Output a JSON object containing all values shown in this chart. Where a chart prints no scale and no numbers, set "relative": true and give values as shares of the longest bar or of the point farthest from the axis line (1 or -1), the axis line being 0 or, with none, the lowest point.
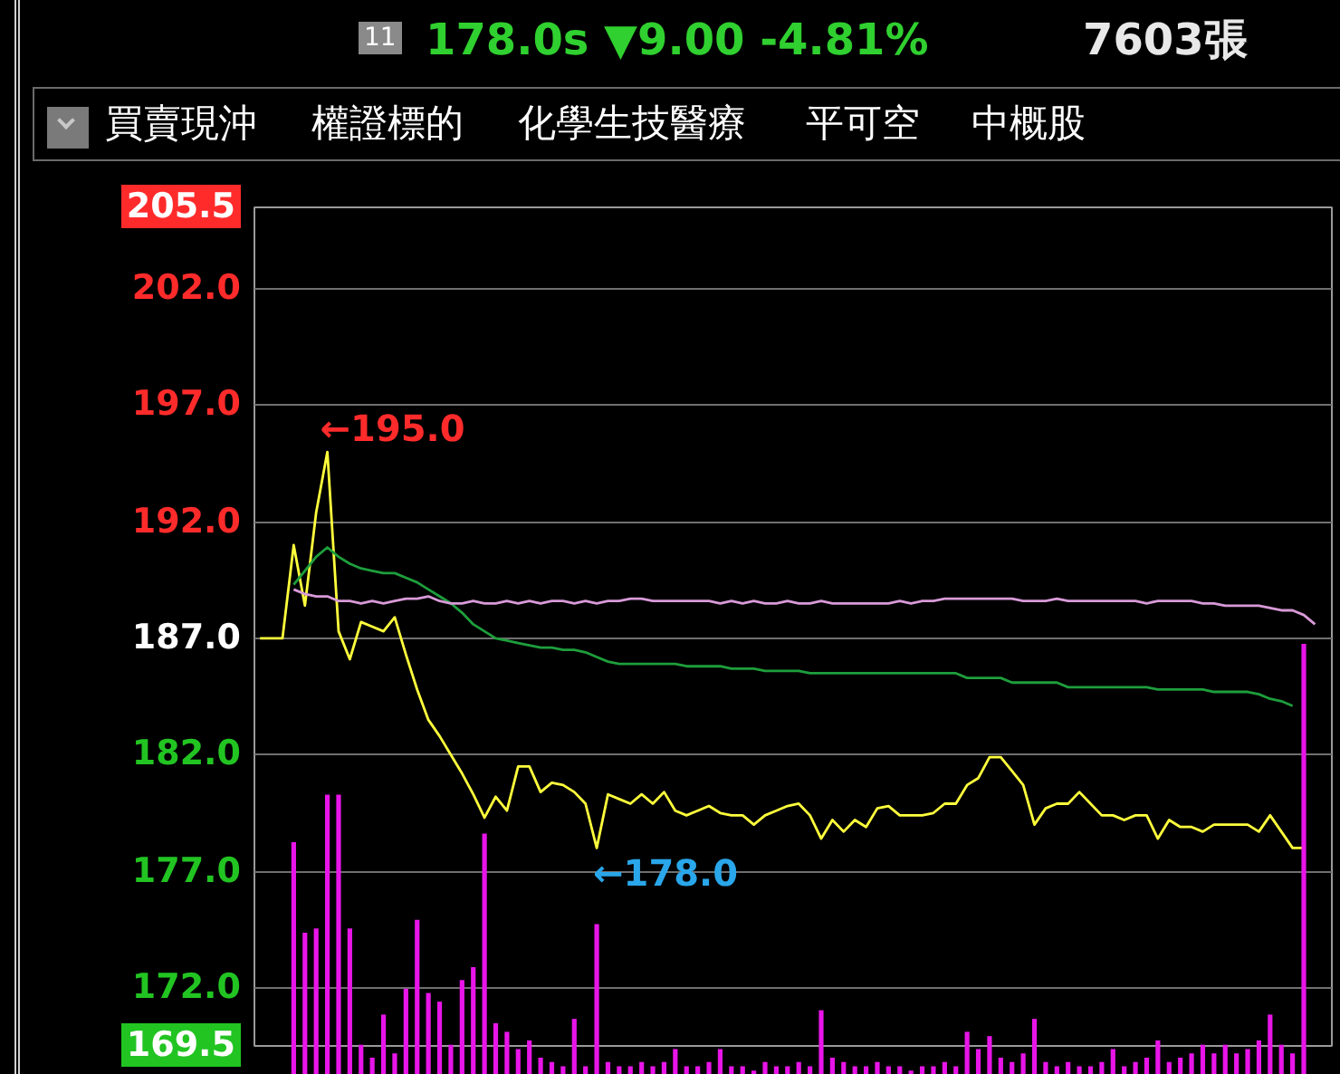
{
  "chart_data": [
    {
      "type": "line",
      "title": "178.0s ▼9.00 -4.81%",
      "subtitle": "7603張",
      "annotations": [
        "11",
        "買賣現沖",
        "權證標的",
        "化學生技醫療",
        "平可空",
        "中概股",
        "←195.0",
        "←178.0"
      ],
      "categories": [
        null,
        null,
        null,
        null,
        null,
        null,
        null,
        null,
        null,
        null,
        null,
        null,
        null,
        null,
        null,
        null,
        null,
        null,
        null,
        null,
        null,
        null,
        null,
        null,
        null,
        null,
        null,
        null,
        null,
        null,
        null,
        null,
        null,
        null,
        null,
        null,
        null,
        null,
        null,
        null,
        null,
        null,
        null,
        null,
        null,
        null,
        null,
        null,
        null,
        null,
        null,
        null,
        null,
        null,
        null,
        null,
        null,
        null,
        null,
        null,
        null,
        null,
        null,
        null,
        null,
        null,
        null,
        null,
        null,
        null,
        null,
        null,
        null,
        null,
        null,
        null,
        null,
        null,
        null,
        null,
        null,
        null,
        null,
        null,
        null,
        null,
        null,
        null,
        null,
        null,
        null,
        null,
        null,
        null,
        null,
        null
      ],
      "series": [
        {
          "color": "#ffff3c",
          "values": [
            187.0,
            187.0,
            187.0,
            191.0,
            188.4,
            192.4,
            195.0,
            187.3,
            186.1,
            187.7,
            187.5,
            187.3,
            187.9,
            186.3,
            184.8,
            183.5,
            182.8,
            182.0,
            181.2,
            180.3,
            179.3,
            180.2,
            179.6,
            181.5,
            181.5,
            180.4,
            180.8,
            180.7,
            180.4,
            179.9,
            178.0,
            180.3,
            180.1,
            179.9,
            180.3,
            179.9,
            180.4,
            179.6,
            179.4,
            179.6,
            179.8,
            179.5,
            179.4,
            179.4,
            179.0,
            179.4,
            179.6,
            179.8,
            179.9,
            179.4,
            178.4,
            179.2,
            178.7,
            179.2,
            178.9,
            179.7,
            179.8,
            179.4,
            179.4,
            179.4,
            179.5,
            179.9,
            179.9,
            180.7,
            181.0,
            181.9,
            181.9,
            181.3,
            180.7,
            179.0,
            179.7,
            179.9,
            179.9,
            180.4,
            179.9,
            179.4,
            179.4,
            179.2,
            179.4,
            179.4,
            178.4,
            179.2,
            178.9,
            178.9,
            178.7,
            179.0,
            179.0,
            179.0,
            179.0,
            178.7,
            179.4,
            178.7,
            178.0,
            178.0,
            null,
            null
          ]
        },
        {
          "color": "#1e9e3c",
          "values": [
            null,
            null,
            null,
            189.3,
            189.9,
            190.5,
            190.9,
            190.5,
            190.2,
            190.0,
            189.9,
            189.8,
            189.8,
            189.6,
            189.4,
            189.1,
            188.8,
            188.5,
            188.1,
            187.6,
            187.3,
            187.0,
            186.9,
            186.8,
            186.7,
            186.6,
            186.6,
            186.5,
            186.5,
            186.4,
            186.2,
            186.0,
            185.9,
            185.9,
            185.9,
            185.9,
            185.9,
            185.9,
            185.8,
            185.8,
            185.8,
            185.8,
            185.7,
            185.7,
            185.7,
            185.6,
            185.6,
            185.6,
            185.6,
            185.5,
            185.5,
            185.5,
            185.5,
            185.5,
            185.5,
            185.5,
            185.5,
            185.5,
            185.5,
            185.5,
            185.5,
            185.5,
            185.5,
            185.3,
            185.3,
            185.3,
            185.3,
            185.1,
            185.1,
            185.1,
            185.1,
            185.1,
            184.9,
            184.9,
            184.9,
            184.9,
            184.9,
            184.9,
            184.9,
            184.9,
            184.8,
            184.8,
            184.8,
            184.8,
            184.8,
            184.7,
            184.7,
            184.7,
            184.7,
            184.6,
            184.4,
            184.3,
            184.1,
            null,
            null,
            null
          ]
        },
        {
          "color": "#d89ad8",
          "values": [
            null,
            null,
            null,
            189.1,
            188.9,
            188.8,
            188.8,
            188.6,
            188.6,
            188.5,
            188.6,
            188.5,
            188.6,
            188.7,
            188.7,
            188.8,
            188.6,
            188.5,
            188.5,
            188.6,
            188.5,
            188.5,
            188.6,
            188.5,
            188.6,
            188.5,
            188.6,
            188.6,
            188.5,
            188.6,
            188.5,
            188.6,
            188.6,
            188.7,
            188.7,
            188.6,
            188.6,
            188.6,
            188.6,
            188.6,
            188.6,
            188.5,
            188.6,
            188.5,
            188.6,
            188.5,
            188.5,
            188.6,
            188.5,
            188.5,
            188.6,
            188.5,
            188.5,
            188.5,
            188.5,
            188.5,
            188.5,
            188.6,
            188.5,
            188.6,
            188.6,
            188.7,
            188.7,
            188.7,
            188.7,
            188.7,
            188.7,
            188.7,
            188.6,
            188.6,
            188.6,
            188.7,
            188.6,
            188.6,
            188.6,
            188.6,
            188.6,
            188.6,
            188.6,
            188.5,
            188.6,
            188.6,
            188.6,
            188.6,
            188.5,
            188.5,
            188.4,
            188.4,
            188.4,
            188.4,
            188.3,
            188.2,
            188.2,
            188.0,
            187.6,
            null
          ]
        }
      ],
      "ylim": [
        169.5,
        205.5
      ],
      "yticks": [
        205.5,
        {
          "value": 202,
          "label": "202.0"
        },
        {
          "value": 197,
          "label": "197.0"
        },
        {
          "value": 192,
          "label": "192.0"
        },
        {
          "value": 187,
          "label": "187.0"
        },
        {
          "value": 182,
          "label": "182.0"
        },
        {
          "value": 177,
          "label": "177.0"
        },
        {
          "value": 172,
          "label": "172.0"
        },
        169.5
      ],
      "grid": "y"
    },
    {
      "type": "bar",
      "relative": true,
      "color": "#e815e8",
      "categories": [
        null,
        null,
        null,
        null,
        null,
        null,
        null,
        null,
        null,
        null,
        null,
        null,
        null,
        null,
        null,
        null,
        null,
        null,
        null,
        null,
        null,
        null,
        null,
        null,
        null,
        null,
        null,
        null,
        null,
        null,
        null,
        null,
        null,
        null,
        null,
        null,
        null,
        null,
        null,
        null,
        null,
        null,
        null,
        null,
        null,
        null,
        null,
        null,
        null,
        null,
        null,
        null,
        null,
        null,
        null,
        null,
        null,
        null,
        null,
        null,
        null,
        null,
        null,
        null,
        null,
        null,
        null,
        null,
        null,
        null,
        null,
        null,
        null,
        null,
        null,
        null,
        null,
        null,
        null,
        null,
        null,
        null,
        null,
        null,
        null,
        null,
        null,
        null,
        null,
        null,
        null,
        null,
        null,
        null,
        null,
        null
      ],
      "values": [
        null,
        null,
        null,
        0.54,
        0.33,
        0.34,
        0.65,
        0.65,
        0.34,
        0.07,
        0.04,
        0.14,
        0.05,
        0.2,
        0.36,
        0.19,
        0.17,
        0.07,
        0.22,
        0.25,
        0.56,
        0.12,
        0.1,
        0.06,
        0.08,
        0.04,
        0.03,
        0.02,
        0.13,
        0.02,
        0.35,
        0.03,
        0.02,
        0.02,
        0.03,
        0.02,
        0.03,
        0.06,
        0.02,
        0.02,
        0.03,
        0.06,
        0.02,
        0.02,
        0.01,
        0.03,
        0.02,
        0.02,
        0.03,
        0.02,
        0.15,
        0.04,
        0.03,
        0.02,
        0.02,
        0.03,
        0.02,
        0.02,
        0.01,
        0.02,
        0.02,
        0.03,
        0.02,
        0.1,
        0.06,
        0.09,
        0.04,
        0.03,
        0.05,
        0.13,
        0.03,
        0.02,
        0.03,
        0.02,
        0.02,
        0.03,
        0.06,
        0.02,
        0.03,
        0.04,
        0.08,
        0.03,
        0.04,
        0.05,
        0.07,
        0.05,
        0.07,
        0.05,
        0.06,
        0.08,
        0.14,
        0.07,
        0.05,
        1.0,
        null,
        null
      ]
    }
  ]
}
